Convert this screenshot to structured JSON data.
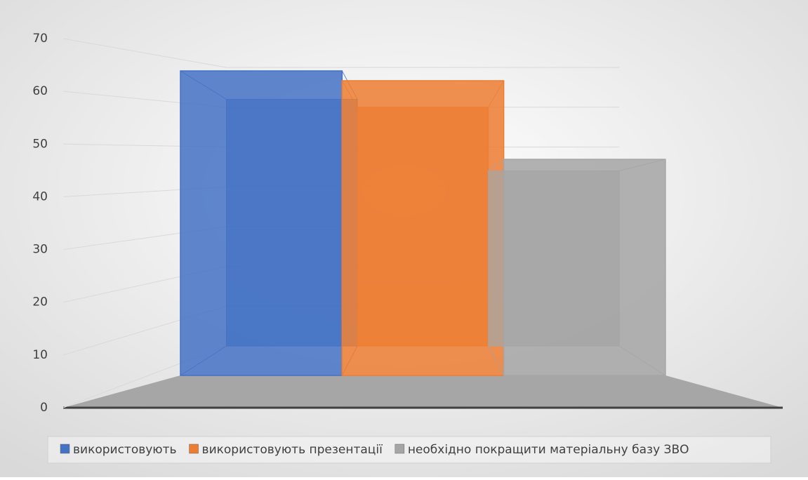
{
  "chart_data": {
    "type": "bar3d",
    "categories": [
      null
    ],
    "series": [
      {
        "name": "використовують",
        "color": "#4472c4",
        "values": [
          62
        ]
      },
      {
        "name": "використовують презентації",
        "color": "#ed7d31",
        "values": [
          60
        ]
      },
      {
        "name": "необхідно покращити матеріальну базу ЗВО",
        "color": "#a5a5a5",
        "values": [
          44
        ]
      }
    ],
    "ylim": [
      0,
      70
    ],
    "yticks": [
      0,
      10,
      20,
      30,
      40,
      50,
      60,
      70
    ],
    "grid": true,
    "legend": "bottom"
  }
}
